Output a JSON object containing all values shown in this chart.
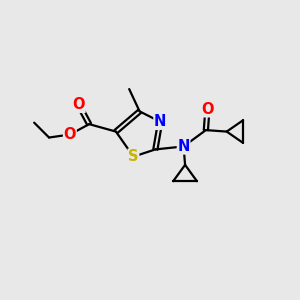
{
  "bg_color": "#e8e8e8",
  "bond_color": "#000000",
  "S_color": "#c8b400",
  "N_color": "#0000ff",
  "O_color": "#ff0000",
  "line_width": 1.6,
  "font_size": 10.5,
  "xlim": [
    0,
    10
  ],
  "ylim": [
    0,
    10
  ]
}
